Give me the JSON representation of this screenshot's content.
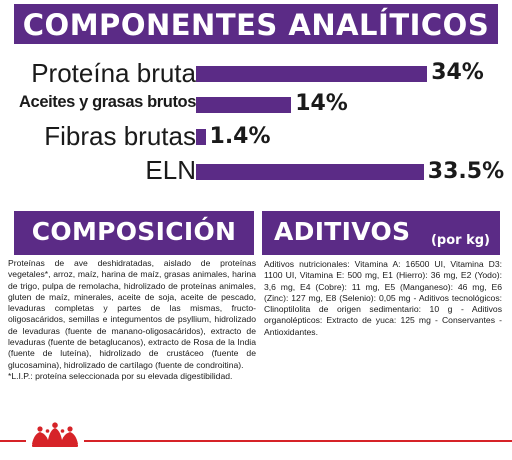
{
  "analiticos": {
    "title": "COMPONENTES ANALÍTICOS",
    "items": [
      {
        "label": "Proteína bruta",
        "value": "34%",
        "percent": 34
      },
      {
        "label": "Aceites y grasas brutos",
        "value": "14%",
        "percent": 14
      },
      {
        "label": "Fibras brutas",
        "value": "1.4%",
        "percent": 1.4
      },
      {
        "label": "ELN",
        "value": "33.5%",
        "percent": 33.5
      }
    ]
  },
  "composicion": {
    "title": "COMPOSICIÓN",
    "text": "Proteínas de ave deshidratadas, aislado de proteínas vegetales*, arroz, maíz, harina de maíz, grasas animales, harina de trigo, pulpa de remolacha, hidrolizado de proteínas animales, gluten de maíz, minerales, aceite de soja, aceite de pescado, levaduras completas y partes de las mismas, fructo-oligosacáridos, semillas e integumentos de psyllium, hidrolizado de levaduras (fuente de manano-oligosacáridos), extracto de levaduras (fuente de betaglucanos), extracto de Rosa de la India (fuente de luteína), hidrolizado de crustáceo (fuente de glucosamina), hidrolizado de cartílago (fuente de condroitina).",
    "footnote": "*L.I.P.: proteína seleccionada por su elevada digestibilidad."
  },
  "aditivos": {
    "title": "ADITIVOS",
    "unit": "(por kg)",
    "text": "Aditivos nutricionales: Vitamina A: 16500 UI, Vitamina D3: 1100 UI, Vitamina E: 500 mg, E1 (Hierro): 36 mg, E2 (Yodo): 3,6 mg, E4 (Cobre): 11 mg, E5 (Manganeso): 46 mg, E6 (Zinc): 127 mg, E8 (Selenio): 0,05 mg - Aditivos tecnológicos: Clinoptilolita de origen sedimentario: 10 g - Aditivos organolépticos: Extracto de yuca: 125 mg - Conservantes - Antioxidantes."
  },
  "colors": {
    "brand_purple": "#5b2b86",
    "footer_red": "#d62328"
  },
  "footer": {
    "logo_icon": "royal-canin-crown-icon"
  }
}
